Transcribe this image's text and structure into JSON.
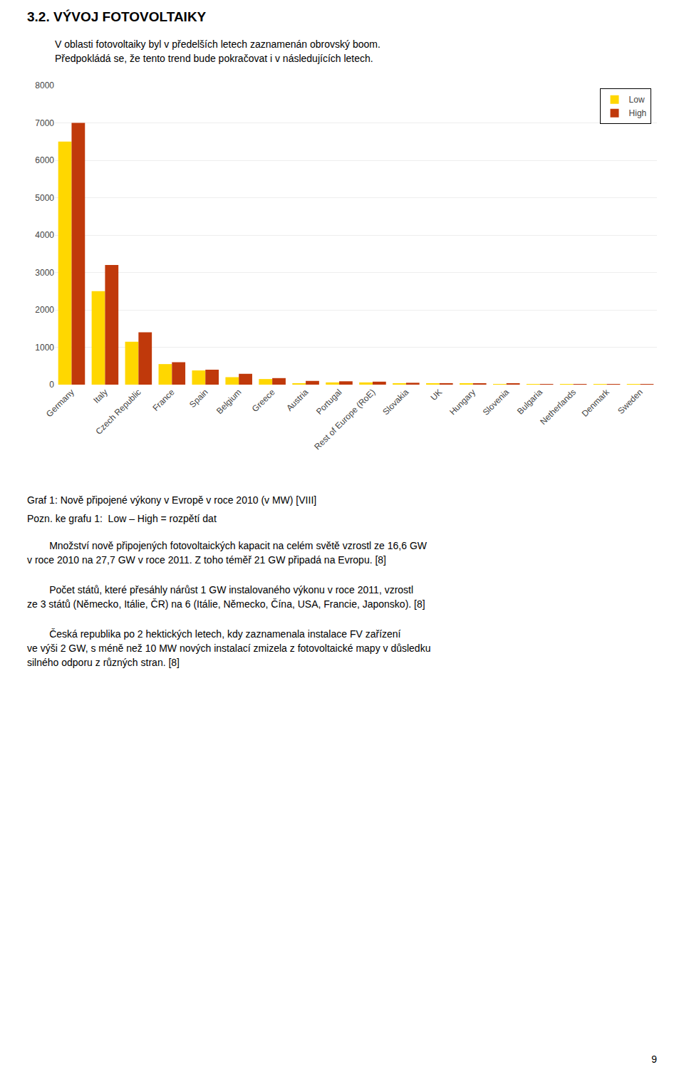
{
  "chart_data": {
    "type": "bar",
    "title": "3.2. VÝVOJ FOTOVOLTAIKY",
    "subtitle": "V oblasti fotovoltaiky byl v předelších letech zaznamenán obrovský boom.\nPředpokládá se, že tento trend bude pokračovat i v následujících letech.",
    "categories": [
      "Germany",
      "Italy",
      "Czech Republic",
      "France",
      "Spain",
      "Belgium",
      "Greece",
      "Austria",
      "Portugal",
      "Rest of Europe (RoE)",
      "Slovakia",
      "UK",
      "Hungary",
      "Slovenia",
      "Bulgaria",
      "Netherlands",
      "Denmark",
      "Sweden"
    ],
    "series": [
      {
        "name": "Low",
        "color": "#FFD700",
        "values": [
          6500,
          2500,
          1150,
          550,
          380,
          200,
          150,
          30,
          60,
          60,
          30,
          20,
          20,
          15,
          10,
          10,
          10,
          5
        ]
      },
      {
        "name": "High",
        "color": "#C0390B",
        "values": [
          7000,
          3200,
          1400,
          600,
          400,
          290,
          175,
          100,
          90,
          80,
          50,
          40,
          30,
          20,
          15,
          15,
          12,
          8
        ]
      }
    ],
    "ylim": [
      0,
      8000
    ],
    "yticks": [
      0,
      1000,
      2000,
      3000,
      4000,
      5000,
      6000,
      7000,
      8000
    ],
    "grid": true,
    "legend": "upper right",
    "annotations": [
      "Graf 1: Nově připojené výkony v Evropě v roce 2010 (v MW) [VIII]",
      "Pozn. ke grafu 1:  Low – High = rozpětí dat",
      "        Množství nově připojených fotovoltaických kapacit na celém světě vzrostl ze 16,6 GW\nv roce 2010 na 27,7 GW v roce 2011. Z toho téměř 21 GW připadá na Evropu. [8]",
      "        Počet států, které přesáhly nárůst 1 GW instalovaného výkonu v roce 2011, vzrostl\nze 3 států (Německo, Itálie, ČR) na 6 (Itálie, Německo, Čína, USA, Francie, Japonsko). [8]",
      "        Česká republika po 2 hektických letech, kdy zaznamenala instalace FV zařízení\nve výši 2 GW, s méně než 10 MW nových instalací zmizela z fotovoltaické mapy v důsledku\nsilného odporu z různých stran. [8]",
      "9"
    ]
  }
}
